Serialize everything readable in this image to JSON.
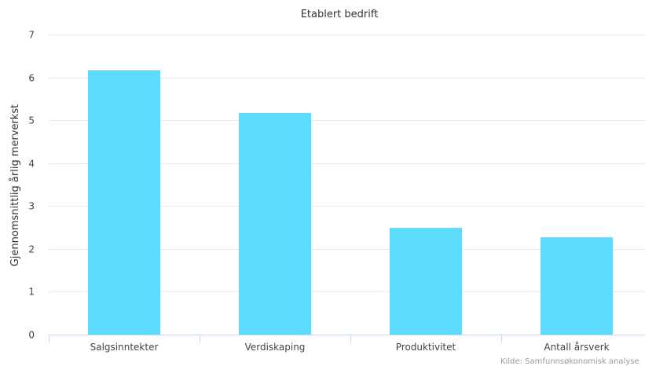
{
  "chart_data": {
    "type": "bar",
    "title": "Etablert bedrift",
    "xlabel": "",
    "ylabel": "Gjennomsnittlig årlig merverkst",
    "categories": [
      "Salgsinntekter",
      "Verdiskaping",
      "Produktivitet",
      "Antall årsverk"
    ],
    "values": [
      6.17,
      5.17,
      2.49,
      2.27
    ],
    "ylim": [
      0,
      7
    ],
    "yticks": [
      0,
      1,
      2,
      3,
      4,
      5,
      6,
      7
    ],
    "grid": true,
    "bar_color": "#5cdbfd",
    "credit": "Kilde: Samfunnsøkonomisk analyse"
  }
}
